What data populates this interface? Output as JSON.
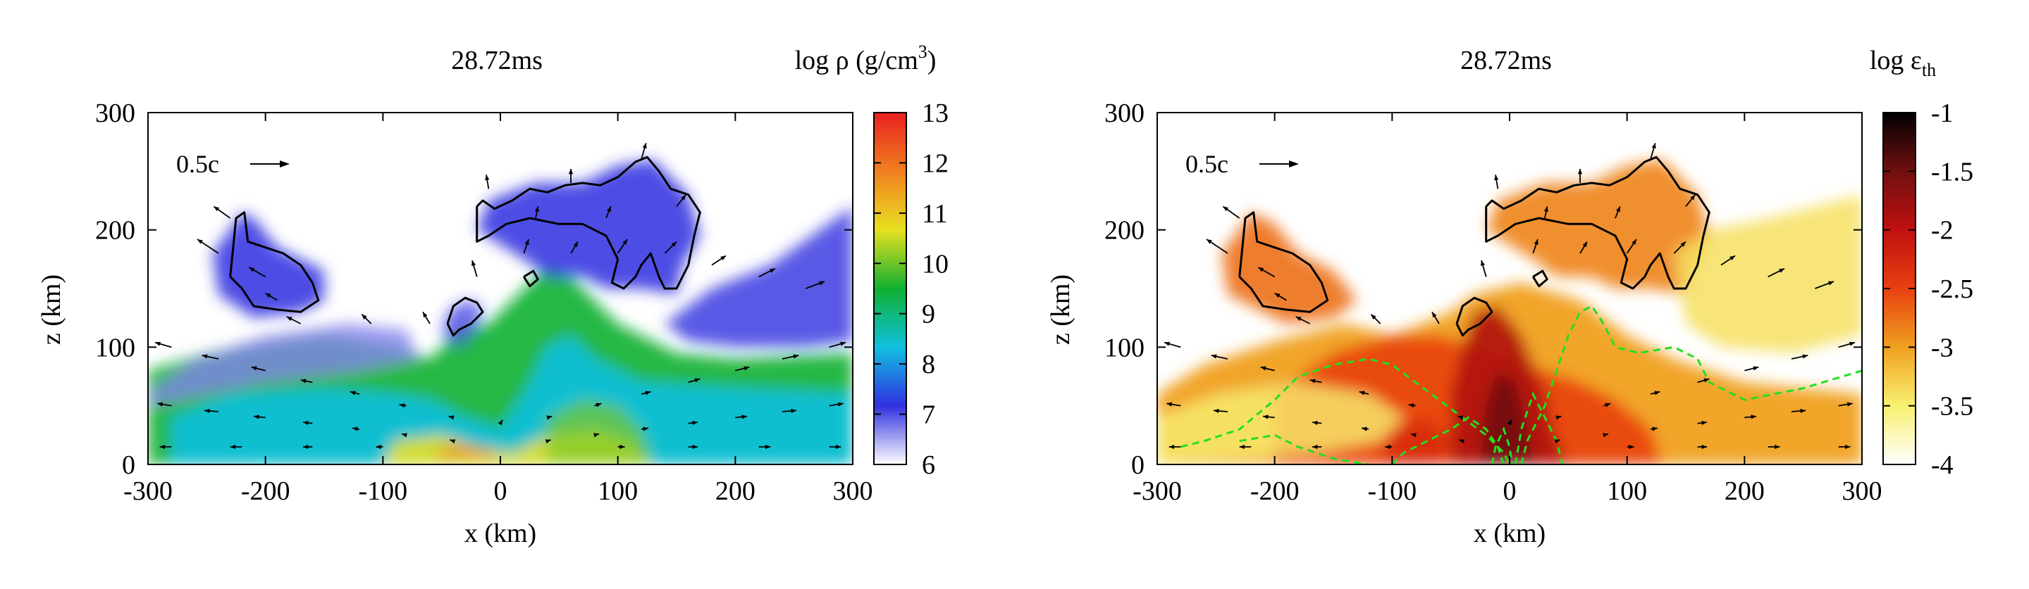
{
  "chart_data": [
    {
      "type": "heatmap",
      "id": "density",
      "title": "28.72ms",
      "colorbar_label": "log ρ (g/cm",
      "colorbar_label_sup": "3",
      "colorbar_label_tail": ")",
      "xlabel": "x (km)",
      "ylabel": "z (km)",
      "xlim": [
        -300,
        300
      ],
      "ylim": [
        0,
        300
      ],
      "x_ticks": [
        "-300",
        "-200",
        "-100",
        "0",
        "100",
        "200",
        "300"
      ],
      "x_tick_values": [
        -300,
        -200,
        -100,
        0,
        100,
        200,
        300
      ],
      "y_ticks": [
        "0",
        "100",
        "200",
        "300"
      ],
      "y_tick_values": [
        0,
        100,
        200,
        300
      ],
      "colorbar_range": [
        6,
        13
      ],
      "colorbar_ticks": [
        "6",
        "7",
        "8",
        "9",
        "10",
        "11",
        "12",
        "13"
      ],
      "colorbar_tick_values": [
        6,
        7,
        8,
        9,
        10,
        11,
        12,
        13
      ],
      "colormap": [
        "#ffffff",
        "#3030e0",
        "#10c0e0",
        "#10b030",
        "#e8e020",
        "#f08020",
        "#e82020"
      ],
      "velocity_legend": "0.5c",
      "contour_color": "#000000"
    },
    {
      "type": "heatmap",
      "id": "thermal",
      "title": "28.72ms",
      "colorbar_label": "log ε",
      "colorbar_label_sub": "th",
      "xlabel": "x (km)",
      "ylabel": "z (km)",
      "xlim": [
        -300,
        300
      ],
      "ylim": [
        0,
        300
      ],
      "x_ticks": [
        "-300",
        "-200",
        "-100",
        "0",
        "100",
        "200",
        "300"
      ],
      "x_tick_values": [
        -300,
        -200,
        -100,
        0,
        100,
        200,
        300
      ],
      "y_ticks": [
        "0",
        "100",
        "200",
        "300"
      ],
      "y_tick_values": [
        0,
        100,
        200,
        300
      ],
      "colorbar_range": [
        -4,
        -1
      ],
      "colorbar_ticks": [
        "-4",
        "-3.5",
        "-3",
        "-2.5",
        "-2",
        "-1.5",
        "-1"
      ],
      "colorbar_tick_values": [
        -4,
        -3.5,
        -3,
        -2.5,
        -2,
        -1.5,
        -1
      ],
      "colormap": [
        "#ffffff",
        "#f8f070",
        "#f0a020",
        "#e84010",
        "#c01010",
        "#701010",
        "#000000"
      ],
      "velocity_legend": "0.5c",
      "contour_color": "#000000",
      "secondary_contour_color": "#20e020"
    }
  ]
}
